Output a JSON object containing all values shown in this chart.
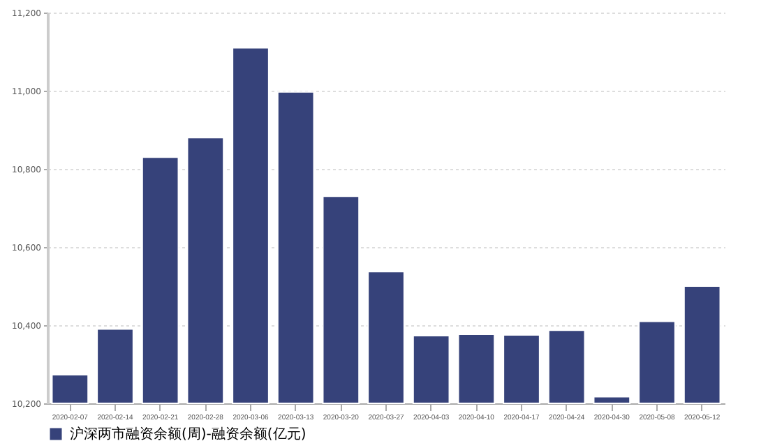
{
  "chart_data": {
    "type": "bar",
    "categories": [
      "2020-02-07",
      "2020-02-14",
      "2020-02-21",
      "2020-02-28",
      "2020-03-06",
      "2020-03-13",
      "2020-03-20",
      "2020-03-27",
      "2020-04-03",
      "2020-04-10",
      "2020-04-17",
      "2020-04-24",
      "2020-04-30",
      "2020-05-08",
      "2020-05-12"
    ],
    "series": [
      {
        "name": "沪深两市融资余额(周)-融资余额(亿元)",
        "color": "#36427a",
        "values": [
          10273,
          10390,
          10830,
          10880,
          11110,
          10997,
          10730,
          10537,
          10373,
          10377,
          10375,
          10387,
          10217,
          10410,
          10500
        ]
      }
    ],
    "ylim": [
      10200,
      11200
    ],
    "yticks": [
      {
        "value": 10200,
        "label": "10,200"
      },
      {
        "value": 10400,
        "label": "10,400"
      },
      {
        "value": 10600,
        "label": "10,600"
      },
      {
        "value": 10800,
        "label": "10,800"
      },
      {
        "value": 11000,
        "label": "11,000"
      },
      {
        "value": 11200,
        "label": "11,200"
      }
    ],
    "grid": "y",
    "legend": "bottom"
  }
}
